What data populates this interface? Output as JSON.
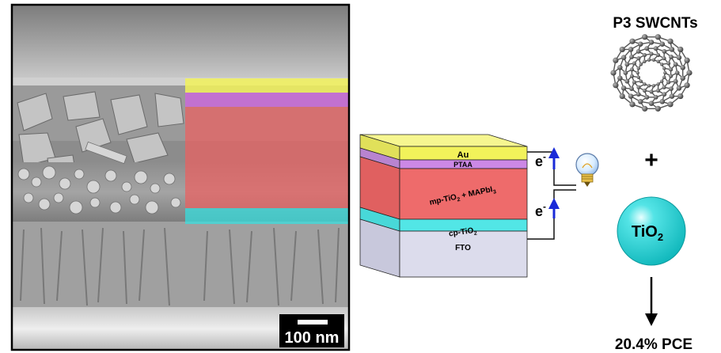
{
  "sem": {
    "scale_bar": "100 nm"
  },
  "stack": {
    "layers": {
      "au": "Au",
      "ptaa": "PTAA",
      "mp": "mp-TiO",
      "mp_sub": "2",
      "mp_rest": " + MAPbI",
      "mp_sub2": "3",
      "cp": "cp-TiO",
      "cp_sub": "2",
      "fto": "FTO"
    },
    "electron_top": "e",
    "electron_top_sup": "-",
    "electron_bottom": "e",
    "electron_bottom_sup": "-"
  },
  "right": {
    "nanotube_label": "P3 SWCNTs",
    "plus": "+",
    "tio2": "TiO",
    "tio2_sub": "2",
    "pce": "20.4% PCE"
  },
  "colors": {
    "au": "#f2f25a",
    "ptaa": "#cc88e6",
    "perovskite": "#ee6b6b",
    "cp": "#52e6e6",
    "fto": "#dcdcec",
    "arrow": "#1a2ad8",
    "sphere": "#22d3d6"
  }
}
